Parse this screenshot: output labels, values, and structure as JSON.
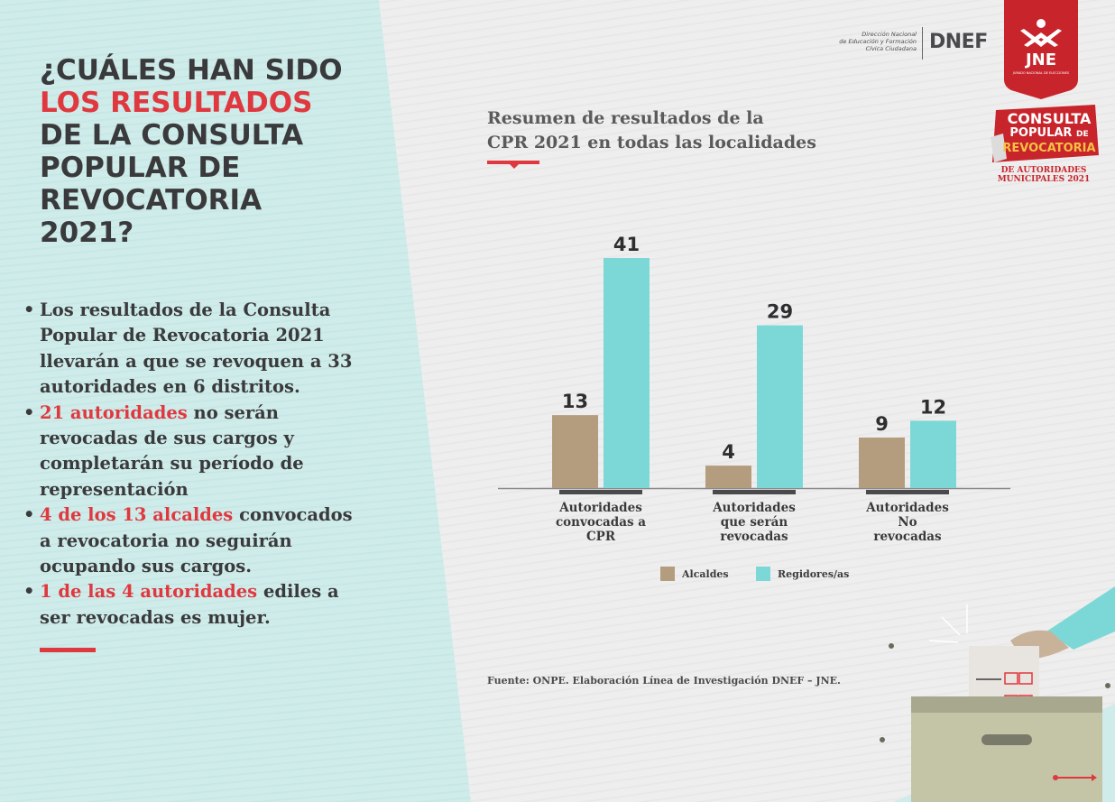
{
  "left": {
    "title_line1": "¿CUÁLES HAN SIDO",
    "title_line2_highlight": "LOS RESULTADOS",
    "title_line3": "DE LA CONSULTA",
    "title_line4": "POPULAR DE",
    "title_line5": "REVOCATORIA",
    "title_line6": "2021?",
    "bullets": [
      {
        "highlight": "",
        "text": "Los resultados de la Consulta Popular de Revocatoria 2021 llevarán a que se revoquen a 33 autoridades en 6 distritos."
      },
      {
        "highlight": "21 autoridades",
        "text": " no serán revocadas de sus cargos y completarán su período de representación"
      },
      {
        "highlight": "4 de los 13 alcaldes",
        "text": " convocados a revocatoria no seguirán ocupando sus cargos."
      },
      {
        "highlight": "1 de las 4 autoridades",
        "text": " ediles a ser revocadas es mujer."
      }
    ]
  },
  "logos": {
    "dnef_small": [
      "Dirección Nacional",
      "de Educación y Formación",
      "Cívica Ciudadana"
    ],
    "dnef_big": "DNEF",
    "jne": "JNE",
    "jne_sub": "JURADO NACIONAL DE ELECCIONES",
    "cpr_line1": "CONSULTA",
    "cpr_line2": "POPULAR",
    "cpr_line2b": "DE",
    "cpr_line3": "REVOCATORIA",
    "cpr_sub1": "DE AUTORIDADES",
    "cpr_sub2": "MUNICIPALES 2021"
  },
  "chart_title_line1": "Resumen de resultados de la",
  "chart_title_line2": "CPR 2021 en todas las localidades",
  "source": "Fuente: ONPE. Elaboración Línea de Investigación DNEF – JNE.",
  "colors": {
    "alcaldes": "#b49c7e",
    "regidores": "#7cd8d6",
    "accent_red": "#e0383f",
    "text_dark": "#3a3a3c"
  },
  "chart_data": {
    "type": "bar",
    "categories": [
      [
        "Autoridades",
        "convocadas a",
        "CPR"
      ],
      [
        "Autoridades",
        "que serán",
        "revocadas"
      ],
      [
        "Autoridades",
        "No",
        "revocadas"
      ]
    ],
    "series": [
      {
        "name": "Alcaldes",
        "values": [
          13,
          4,
          9
        ]
      },
      {
        "name": "Regidores/as",
        "values": [
          41,
          29,
          12
        ]
      }
    ],
    "ylim": [
      0,
      41
    ],
    "legend": "bottom",
    "grid": false
  }
}
